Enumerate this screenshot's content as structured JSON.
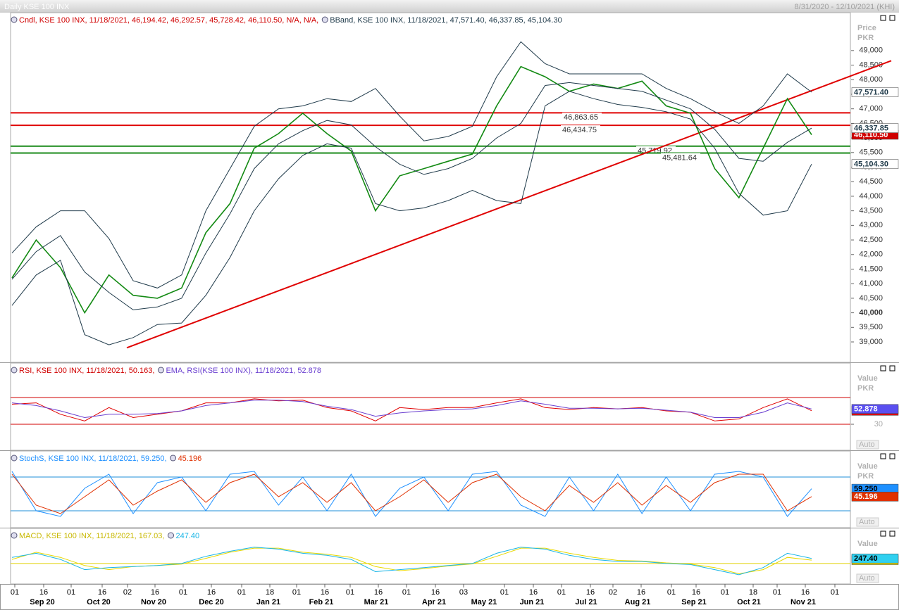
{
  "header": {
    "title": "Daily KSE 100 INX",
    "range": "8/31/2020 - 12/10/2021 (KHI)"
  },
  "chart_data": [
    {
      "type": "line",
      "axis_label": "Price",
      "axis_unit": "PKR",
      "legend": [
        {
          "text": "Cndl, KSE 100 INX, 11/18/2021, 46,194.42, 46,292.57, 45,728.42, 46,110.50, N/A, N/A,",
          "color": "#d00000"
        },
        {
          "text": "BBand, KSE 100 INX, 11/18/2021, 47,571.40, 46,337.85, 45,104.30",
          "color": "#1f3a4a"
        }
      ],
      "ylim": [
        38300,
        50300
      ],
      "yticks": [
        {
          "value": 39000,
          "label": "39,000"
        },
        {
          "value": 39500,
          "label": "39,500"
        },
        {
          "value": 40000,
          "label": "40,000"
        },
        {
          "value": 40500,
          "label": "40,500"
        },
        {
          "value": 41000,
          "label": "41,000"
        },
        {
          "value": 41500,
          "label": "41,500"
        },
        {
          "value": 42000,
          "label": "42,000"
        },
        {
          "value": 42500,
          "label": "42,500"
        },
        {
          "value": 43000,
          "label": "43,000"
        },
        {
          "value": 43500,
          "label": "43,500"
        },
        {
          "value": 44000,
          "label": "44,000"
        },
        {
          "value": 44500,
          "label": "44,500"
        },
        {
          "value": 45000,
          "label": "45,000"
        },
        {
          "value": 45500,
          "label": "45,500"
        },
        {
          "value": 46000,
          "label": "46,000"
        },
        {
          "value": 46500,
          "label": "46,500"
        },
        {
          "value": 47000,
          "label": "47,000"
        },
        {
          "value": 47500,
          "label": "47,500"
        },
        {
          "value": 48000,
          "label": "48,000"
        },
        {
          "value": 48500,
          "label": "48,500"
        },
        {
          "value": 49000,
          "label": "49,000"
        }
      ],
      "series": [
        {
          "color": "#138a13",
          "label_fill": "#d00000",
          "label_text": "#ffffff",
          "last_label": "46,110.50",
          "values": [
            41200,
            42500,
            41550,
            40000,
            41300,
            40600,
            40500,
            40850,
            42750,
            43750,
            45650,
            46150,
            46850,
            46150,
            45550,
            43500,
            44700,
            44950,
            45200,
            45450,
            47100,
            48450,
            48100,
            47600,
            47850,
            47700,
            47950,
            47100,
            46850,
            44950,
            43950,
            45650,
            47350,
            46110.5
          ]
        },
        {
          "color": "#1f3a4a",
          "label_fill": "#ffffff",
          "label_text": "#1f3a4a",
          "last_label": "47,571.40",
          "values": [
            42050,
            42950,
            43500,
            43500,
            42550,
            41100,
            40850,
            41300,
            43500,
            44950,
            46400,
            47000,
            47100,
            47350,
            47250,
            47700,
            46750,
            45900,
            46050,
            46400,
            48100,
            49300,
            48550,
            48200,
            48200,
            48200,
            48200,
            47700,
            47350,
            46900,
            46500,
            47100,
            48200,
            47571.4
          ]
        },
        {
          "color": "#1f3a4a",
          "label_fill": "#ffffff",
          "label_text": "#1f3a4a",
          "last_label": "46,337.85",
          "values": [
            41150,
            42100,
            42650,
            41400,
            40700,
            40100,
            40200,
            40500,
            42050,
            43400,
            44950,
            45800,
            46250,
            46600,
            46450,
            45700,
            45100,
            44750,
            44950,
            45300,
            46000,
            46500,
            47800,
            47900,
            47800,
            47700,
            47600,
            47300,
            47000,
            46300,
            45300,
            45200,
            45850,
            46337.85
          ]
        },
        {
          "color": "#1f3a4a",
          "label_fill": "#ffffff",
          "label_text": "#1f3a4a",
          "last_label": "45,104.30",
          "values": [
            40250,
            41300,
            41800,
            39250,
            38900,
            39150,
            39600,
            39650,
            40600,
            41900,
            43500,
            44600,
            45400,
            45800,
            45650,
            43750,
            43500,
            43600,
            43850,
            44200,
            43850,
            43750,
            47100,
            47600,
            47350,
            47150,
            47050,
            46900,
            46650,
            45650,
            44100,
            43350,
            43500,
            45104.3
          ]
        }
      ],
      "hlines": [
        {
          "value": 46863.65,
          "label": "46,863.65",
          "color": "#e00000"
        },
        {
          "value": 46434.75,
          "label": "46,434.75",
          "color": "#e00000"
        },
        {
          "value": 45719.92,
          "label": "45,719.92",
          "color": "#1a8a1a"
        },
        {
          "value": 45481.64,
          "label": "45,481.64",
          "color": "#1a8a1a"
        }
      ],
      "trendline": {
        "values": [
          38800,
          48650
        ],
        "color": "#e00000"
      }
    },
    {
      "type": "line",
      "axis_label": "Value",
      "axis_unit": "PKR",
      "scale_mode": "Auto",
      "legend": [
        {
          "text": "RSI, KSE 100 INX, 11/18/2021, 50.163,",
          "color": "#d00000"
        },
        {
          "text": "EMA, RSI(KSE 100 INX), 11/18/2021, 52.878",
          "color": "#6a3fd0"
        }
      ],
      "ylim": [
        0,
        100
      ],
      "yticks": [
        30
      ],
      "levels": [
        70,
        30
      ],
      "level_color": "#d00000",
      "series": [
        {
          "color": "#e00000",
          "label_fill": "#e00000",
          "label_text": "#ffffff",
          "last_label": "50.163",
          "values": [
            60,
            62,
            45,
            35,
            55,
            40,
            45,
            50,
            62,
            62,
            68,
            65,
            66,
            55,
            50,
            35,
            55,
            52,
            55,
            55,
            62,
            68,
            55,
            52,
            55,
            53,
            55,
            50,
            48,
            35,
            38,
            55,
            68,
            50.163
          ]
        },
        {
          "color": "#6a3fd0",
          "label_fill": "#5a4ff0",
          "label_text": "#ffffff",
          "last_label": "52.878",
          "values": [
            62,
            58,
            50,
            40,
            45,
            45,
            46,
            50,
            58,
            62,
            66,
            66,
            64,
            57,
            52,
            42,
            47,
            50,
            52,
            53,
            58,
            65,
            60,
            54,
            54,
            53,
            54,
            51,
            48,
            40,
            40,
            48,
            62,
            52.878
          ]
        }
      ]
    },
    {
      "type": "line",
      "axis_label": "Value",
      "axis_unit": "PKR",
      "scale_mode": "Auto",
      "legend": [
        {
          "text": "StochS, KSE 100 INX, 11/18/2021, 59.250,",
          "color": "#1e90ff"
        },
        {
          "text": "45.196",
          "color": "#e03000"
        }
      ],
      "ylim": [
        0,
        100
      ],
      "levels": [
        80,
        20
      ],
      "level_color": "#1f8fd8",
      "series": [
        {
          "color": "#1e90ff",
          "label_fill": "#1e90ff",
          "label_text": "#000000",
          "last_label": "59.250",
          "values": [
            90,
            20,
            10,
            60,
            85,
            15,
            70,
            80,
            20,
            85,
            90,
            30,
            80,
            20,
            85,
            10,
            60,
            80,
            20,
            85,
            90,
            30,
            10,
            80,
            20,
            85,
            15,
            80,
            20,
            85,
            90,
            80,
            10,
            59.25
          ]
        },
        {
          "color": "#e03000",
          "label_fill": "#e03000",
          "label_text": "#ffffff",
          "last_label": "45.196",
          "values": [
            85,
            30,
            15,
            45,
            75,
            30,
            55,
            75,
            35,
            70,
            85,
            45,
            70,
            35,
            70,
            20,
            45,
            75,
            35,
            70,
            85,
            45,
            20,
            65,
            35,
            70,
            30,
            65,
            35,
            70,
            85,
            85,
            20,
            45.196
          ]
        }
      ]
    },
    {
      "type": "line",
      "axis_label": "Value",
      "scale_mode": "Auto",
      "legend": [
        {
          "text": "MACD, KSE 100 INX, 11/18/2021, 167.03,",
          "color": "#c8b800"
        },
        {
          "text": "247.40",
          "color": "#19b5e6"
        }
      ],
      "ylim": [
        -1000,
        1200
      ],
      "levels": [
        0
      ],
      "level_color": "#e0d000",
      "series": [
        {
          "color": "#e8d800",
          "label_fill": "#e8e000",
          "label_text": "#000000",
          "last_label": "167.03",
          "values": [
            200,
            550,
            300,
            -100,
            -300,
            -150,
            -100,
            -30,
            250,
            550,
            750,
            750,
            550,
            450,
            300,
            -150,
            -350,
            -250,
            -120,
            -20,
            350,
            750,
            750,
            500,
            300,
            150,
            120,
            30,
            -30,
            -200,
            -500,
            -300,
            300,
            167.03
          ]
        },
        {
          "color": "#19b5e6",
          "label_fill": "#30d0f0",
          "label_text": "#000000",
          "last_label": "247.40",
          "values": [
            300,
            500,
            200,
            -300,
            -200,
            -150,
            -100,
            0,
            350,
            600,
            800,
            700,
            500,
            400,
            200,
            -400,
            -300,
            -200,
            -100,
            0,
            500,
            800,
            700,
            400,
            200,
            100,
            100,
            0,
            -50,
            -300,
            -550,
            -200,
            500,
            247.4
          ]
        }
      ]
    }
  ],
  "date_axis": {
    "days": [
      "01",
      "16",
      "01",
      "16",
      "02",
      "16",
      "01",
      "16",
      "01",
      "18",
      "01",
      "16",
      "01",
      "16",
      "01",
      "16",
      "03",
      "01",
      "16",
      "01",
      "16",
      "02",
      "16",
      "01",
      "16",
      "01",
      "18",
      "01",
      "16",
      "01"
    ],
    "months": [
      "Sep 20",
      "Oct 20",
      "Nov 20",
      "Dec 20",
      "Jan 21",
      "Feb 21",
      "Mar 21",
      "Apr 21",
      "May 21",
      "Jun 21",
      "Jul 21",
      "Aug 21",
      "Sep 21",
      "Oct 21",
      "Nov 21"
    ]
  }
}
